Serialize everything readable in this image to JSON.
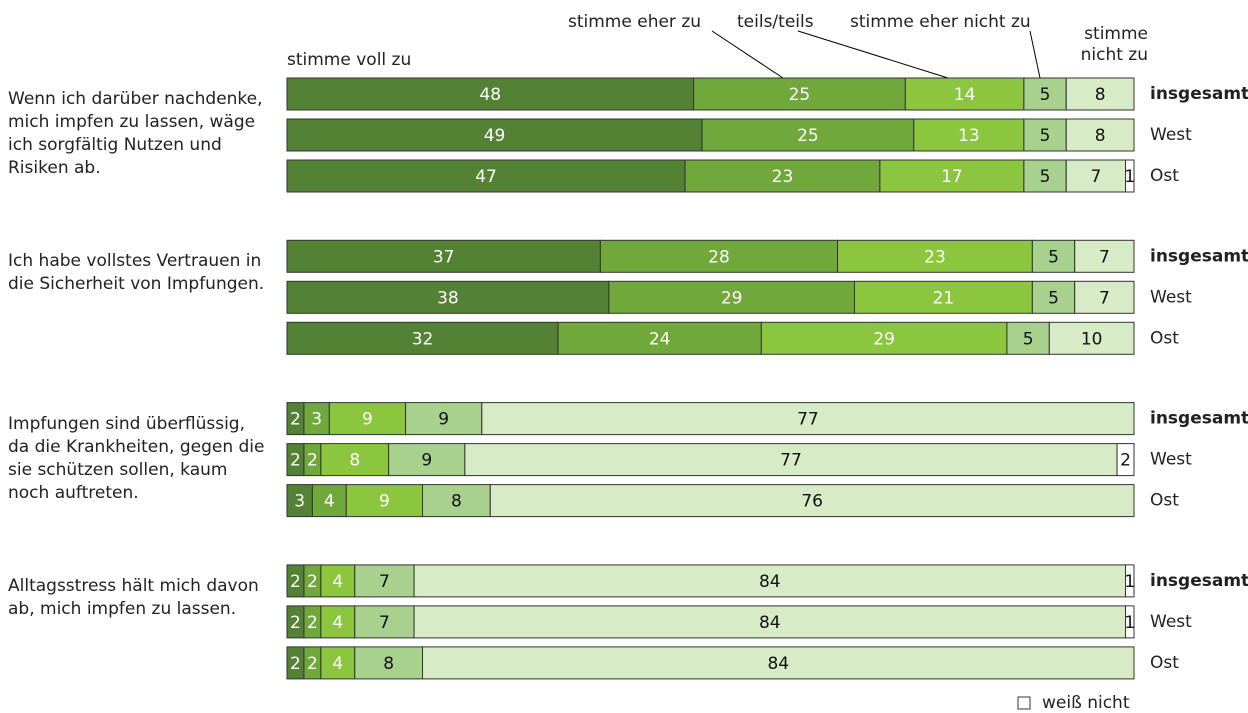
{
  "chart_data": {
    "type": "stacked-bar",
    "xlim": [
      0,
      100
    ],
    "series": [
      {
        "name": "stimme voll zu",
        "color": "#548235"
      },
      {
        "name": "stimme eher zu",
        "color": "#70a83b"
      },
      {
        "name": "teils/teils",
        "color": "#8cc63f"
      },
      {
        "name": "stimme eher nicht zu",
        "color": "#a9d18e"
      },
      {
        "name": "stimme nicht zu",
        "color": "#d7ebc6"
      },
      {
        "name": "weiß nicht",
        "color": "#ffffff"
      }
    ],
    "groups": [
      {
        "label": "Wenn ich darüber nachdenke, mich impfen zu lassen, wäge ich sorgfältig Nutzen und Risiken ab.",
        "rows": [
          {
            "name": "insgesamt",
            "values": [
              48,
              25,
              14,
              5,
              8,
              null
            ]
          },
          {
            "name": "West",
            "values": [
              49,
              25,
              13,
              5,
              8,
              null
            ]
          },
          {
            "name": "Ost",
            "values": [
              47,
              23,
              17,
              5,
              7,
              1
            ]
          }
        ]
      },
      {
        "label": "Ich habe vollstes Vertrauen in die Sicherheit von Impfungen.",
        "rows": [
          {
            "name": "insgesamt",
            "values": [
              37,
              28,
              23,
              5,
              7,
              null
            ]
          },
          {
            "name": "West",
            "values": [
              38,
              29,
              21,
              5,
              7,
              null
            ]
          },
          {
            "name": "Ost",
            "values": [
              32,
              24,
              29,
              5,
              10,
              null
            ]
          }
        ]
      },
      {
        "label": "Impfungen sind überflüssig, da die Krankheiten, gegen die sie schützen sollen, kaum noch auftreten.",
        "rows": [
          {
            "name": "insgesamt",
            "values": [
              2,
              3,
              9,
              9,
              77,
              null
            ]
          },
          {
            "name": "West",
            "values": [
              2,
              2,
              8,
              9,
              77,
              2
            ]
          },
          {
            "name": "Ost",
            "values": [
              3,
              4,
              9,
              8,
              76,
              null
            ]
          }
        ]
      },
      {
        "label": "Alltagsstress hält mich davon ab, mich impfen zu lassen.",
        "rows": [
          {
            "name": "insgesamt",
            "values": [
              2,
              2,
              4,
              7,
              84,
              1
            ]
          },
          {
            "name": "West",
            "values": [
              2,
              2,
              4,
              7,
              84,
              1
            ]
          },
          {
            "name": "Ost",
            "values": [
              2,
              2,
              4,
              8,
              84,
              null
            ]
          }
        ]
      }
    ]
  }
}
